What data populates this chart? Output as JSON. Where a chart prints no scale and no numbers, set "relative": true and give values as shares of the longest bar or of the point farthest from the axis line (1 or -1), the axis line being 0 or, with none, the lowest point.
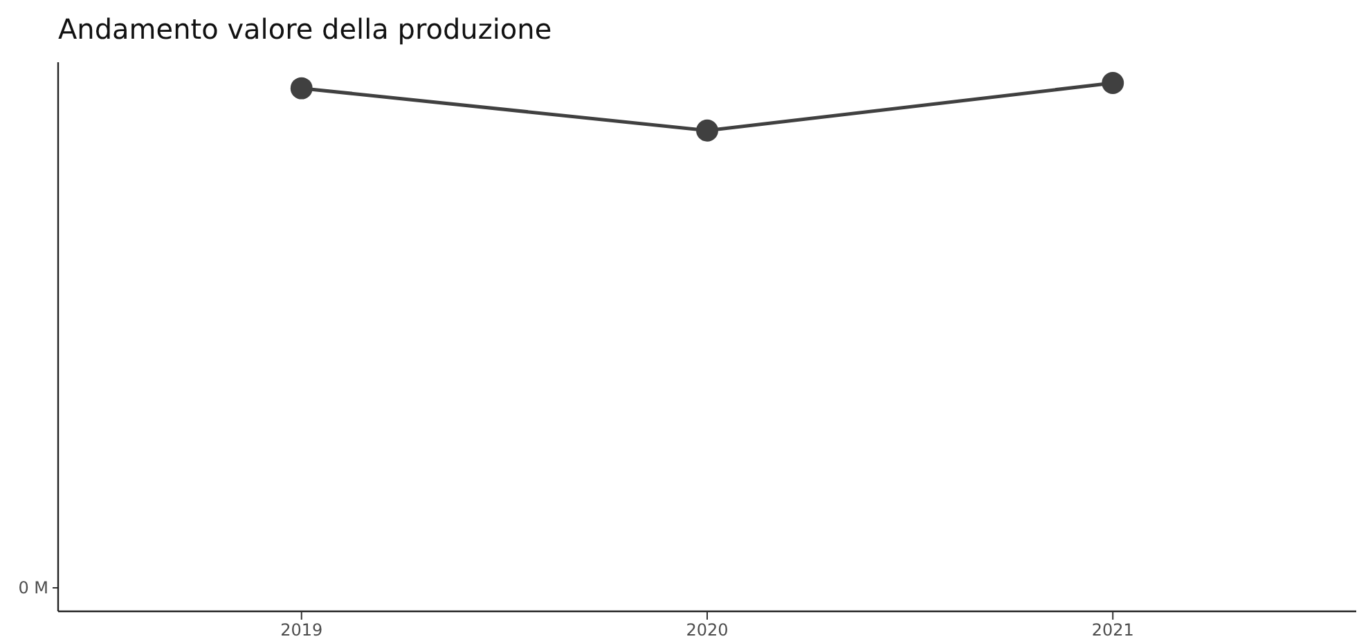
{
  "chart_data": {
    "type": "line",
    "title": "Andamento valore della produzione",
    "categories": [
      "2019",
      "2020",
      "2021"
    ],
    "series": [
      {
        "color": "#404040",
        "values": [
          0.99,
          0.91,
          1
        ]
      }
    ],
    "relative": true,
    "annotations": [
      "0 M"
    ],
    "marker": "circle",
    "line_style": "solid",
    "grid": false
  }
}
